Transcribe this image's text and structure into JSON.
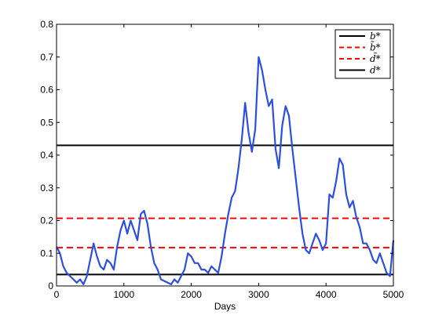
{
  "chart_data": {
    "type": "line",
    "title": "",
    "xlabel": "Days",
    "ylabel": "",
    "xlim": [
      0,
      5000
    ],
    "ylim": [
      0,
      0.8
    ],
    "xticks": [
      0,
      1000,
      2000,
      3000,
      4000,
      5000
    ],
    "xtick_labels": [
      "0",
      "1000",
      "2000",
      "3000",
      "4000",
      "5000"
    ],
    "yticks": [
      0,
      0.1,
      0.2,
      0.3,
      0.4,
      0.5,
      0.6,
      0.7,
      0.8
    ],
    "ytick_labels": [
      "0",
      "0.1",
      "0.2",
      "0.3",
      "0.4",
      "0.5",
      "0.6",
      "0.7",
      "0.8"
    ],
    "grid": false,
    "legend_position": "top-right",
    "series": [
      {
        "type": "line",
        "color": "#2b4fe0",
        "x": [
          0,
          50,
          100,
          150,
          200,
          250,
          300,
          350,
          400,
          450,
          500,
          550,
          600,
          650,
          700,
          750,
          800,
          850,
          900,
          950,
          1000,
          1050,
          1100,
          1150,
          1200,
          1250,
          1300,
          1350,
          1400,
          1450,
          1500,
          1550,
          1600,
          1650,
          1700,
          1750,
          1800,
          1850,
          1900,
          1950,
          2000,
          2050,
          2100,
          2150,
          2200,
          2250,
          2300,
          2350,
          2400,
          2450,
          2500,
          2550,
          2600,
          2650,
          2700,
          2750,
          2800,
          2850,
          2900,
          2950,
          3000,
          3050,
          3100,
          3150,
          3200,
          3250,
          3300,
          3350,
          3400,
          3450,
          3500,
          3550,
          3600,
          3650,
          3700,
          3750,
          3800,
          3850,
          3900,
          3950,
          4000,
          4050,
          4100,
          4150,
          4200,
          4250,
          4300,
          4350,
          4400,
          4450,
          4500,
          4550,
          4600,
          4650,
          4700,
          4750,
          4800,
          4850,
          4900,
          4950,
          5000
        ],
        "y": [
          0.12,
          0.1,
          0.06,
          0.04,
          0.03,
          0.02,
          0.01,
          0.02,
          0.005,
          0.03,
          0.08,
          0.13,
          0.09,
          0.06,
          0.05,
          0.08,
          0.07,
          0.05,
          0.12,
          0.17,
          0.2,
          0.16,
          0.2,
          0.17,
          0.14,
          0.22,
          0.23,
          0.19,
          0.12,
          0.07,
          0.05,
          0.02,
          0.015,
          0.01,
          0.005,
          0.02,
          0.01,
          0.03,
          0.05,
          0.1,
          0.09,
          0.07,
          0.07,
          0.05,
          0.05,
          0.04,
          0.06,
          0.05,
          0.04,
          0.09,
          0.16,
          0.22,
          0.27,
          0.29,
          0.36,
          0.45,
          0.56,
          0.47,
          0.41,
          0.48,
          0.7,
          0.66,
          0.6,
          0.55,
          0.57,
          0.42,
          0.36,
          0.49,
          0.55,
          0.52,
          0.42,
          0.33,
          0.24,
          0.16,
          0.11,
          0.1,
          0.13,
          0.16,
          0.14,
          0.11,
          0.13,
          0.28,
          0.27,
          0.32,
          0.39,
          0.37,
          0.28,
          0.24,
          0.26,
          0.21,
          0.18,
          0.13,
          0.13,
          0.11,
          0.08,
          0.07,
          0.1,
          0.07,
          0.04,
          0.03,
          0.14
        ]
      }
    ],
    "hlines": [
      {
        "label": "b*",
        "y": 0.43,
        "color": "#000000",
        "style": "solid"
      },
      {
        "label": "b̃*",
        "y": 0.117,
        "color": "#ff0000",
        "style": "dashed"
      },
      {
        "label": "d̃*",
        "y": 0.207,
        "color": "#ff0000",
        "style": "dashed"
      },
      {
        "label": "d*",
        "y": 0.035,
        "color": "#000000",
        "style": "solid"
      }
    ]
  }
}
